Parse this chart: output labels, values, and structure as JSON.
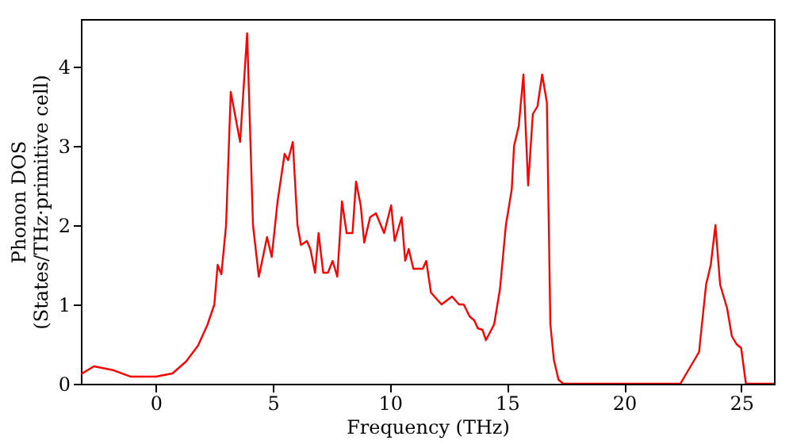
{
  "chart_data": {
    "type": "line",
    "xlabel": "Frequency (THz)",
    "ylabel": "Phonon DOS\n(States/THz·primitive cell)",
    "x": [
      -3.2,
      -2.64,
      -1.8,
      -1.07,
      0,
      0.71,
      1.29,
      1.8,
      2.2,
      2.5,
      2.64,
      2.8,
      3.0,
      3.2,
      3.6,
      3.9,
      4.15,
      4.4,
      4.75,
      4.95,
      5.2,
      5.5,
      5.65,
      5.85,
      6.05,
      6.2,
      6.45,
      6.6,
      6.8,
      6.95,
      7.15,
      7.35,
      7.55,
      7.75,
      7.95,
      8.15,
      8.4,
      8.55,
      8.75,
      8.9,
      9.15,
      9.4,
      9.75,
      10.05,
      10.2,
      10.5,
      10.65,
      10.8,
      11.0,
      11.4,
      11.55,
      11.75,
      12.2,
      12.65,
      12.95,
      13.15,
      13.4,
      13.6,
      13.75,
      13.95,
      14.1,
      14.45,
      14.7,
      14.95,
      15.2,
      15.3,
      15.5,
      15.7,
      15.9,
      16.1,
      16.3,
      16.5,
      16.7,
      16.85,
      17.0,
      17.2,
      17.4,
      22.4,
      22.8,
      23.2,
      23.5,
      23.7,
      23.9,
      24.1,
      24.4,
      24.6,
      24.8,
      25.0,
      25.2,
      26.4
    ],
    "series": [
      {
        "color": "#ff0000",
        "values": [
          0.12,
          0.22,
          0.17,
          0.09,
          0.09,
          0.13,
          0.28,
          0.48,
          0.74,
          1.0,
          1.5,
          1.38,
          2.0,
          3.68,
          3.05,
          4.42,
          2.0,
          1.35,
          1.85,
          1.6,
          2.3,
          2.9,
          2.82,
          3.05,
          2.0,
          1.75,
          1.8,
          1.7,
          1.4,
          1.9,
          1.4,
          1.4,
          1.55,
          1.35,
          2.3,
          1.9,
          1.9,
          2.55,
          2.25,
          1.78,
          2.1,
          2.15,
          1.9,
          2.25,
          1.8,
          2.1,
          1.55,
          1.7,
          1.45,
          1.45,
          1.55,
          1.15,
          1.0,
          1.1,
          1.0,
          1.0,
          0.85,
          0.8,
          0.7,
          0.68,
          0.55,
          0.75,
          1.2,
          2.0,
          2.45,
          3.0,
          3.25,
          3.9,
          2.5,
          3.4,
          3.5,
          3.9,
          3.55,
          0.75,
          0.3,
          0.05,
          0.0,
          0.0,
          0.2,
          0.4,
          1.25,
          1.5,
          2.0,
          1.25,
          0.95,
          0.6,
          0.5,
          0.45,
          0.0,
          0.0
        ]
      }
    ],
    "xlim": [
      -3.2,
      26.4
    ],
    "xticks": [
      0,
      5,
      10,
      15,
      20,
      25
    ],
    "ylim": [
      0,
      4.6
    ],
    "yticks": [
      0,
      1,
      2,
      3,
      4
    ],
    "grid": false,
    "legend": false,
    "marker": "none",
    "line_style": "solid"
  }
}
